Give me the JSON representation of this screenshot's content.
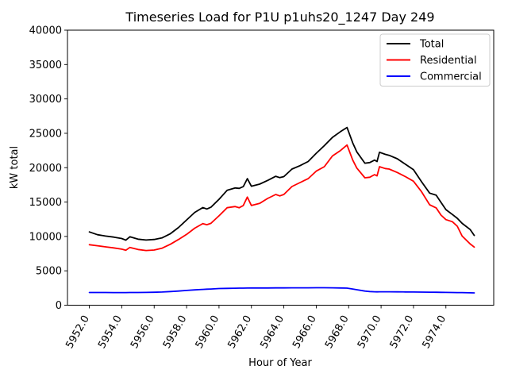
{
  "chart_data": {
    "type": "line",
    "title": "Timeseries Load for P1U p1uhs20_1247  Day 249",
    "xlabel": "Hour of Year",
    "ylabel": "kW total",
    "xlim": [
      5950.65,
      5976.95
    ],
    "ylim": [
      0,
      40000
    ],
    "xticks": [
      5952,
      5954,
      5956,
      5958,
      5960,
      5962,
      5964,
      5966,
      5968,
      5970,
      5972,
      5974
    ],
    "xtick_labels": [
      "5952.0",
      "5954.0",
      "5956.0",
      "5958.0",
      "5960.0",
      "5962.0",
      "5964.0",
      "5966.0",
      "5968.0",
      "5970.0",
      "5972.0",
      "5974.0"
    ],
    "xtick_rotation_deg": 60,
    "yticks": [
      0,
      5000,
      10000,
      15000,
      20000,
      25000,
      30000,
      35000,
      40000
    ],
    "ytick_labels": [
      "0",
      "5000",
      "10000",
      "15000",
      "20000",
      "25000",
      "30000",
      "35000",
      "40000"
    ],
    "grid": false,
    "background": "#ffffff",
    "axes_edge_color": "#000000",
    "legend_position": "upper right",
    "legend_edge_color": "#cccccc",
    "x": [
      5952.0,
      5952.5,
      5953.0,
      5953.5,
      5954.0,
      5954.25,
      5954.5,
      5955.0,
      5955.5,
      5956.0,
      5956.5,
      5957.0,
      5957.5,
      5958.0,
      5958.5,
      5959.0,
      5959.25,
      5959.5,
      5960.0,
      5960.5,
      5961.0,
      5961.25,
      5961.5,
      5961.75,
      5962.0,
      5962.5,
      5963.0,
      5963.5,
      5963.75,
      5964.0,
      5964.5,
      5965.0,
      5965.5,
      5966.0,
      5966.5,
      5967.0,
      5967.5,
      5967.9,
      5968.25,
      5968.5,
      5969.0,
      5969.3,
      5969.6,
      5969.75,
      5969.9,
      5970.25,
      5970.5,
      5971.0,
      5971.5,
      5972.0,
      5972.5,
      5973.0,
      5973.4,
      5973.7,
      5974.0,
      5974.4,
      5974.7,
      5975.0,
      5975.5,
      5975.75
    ],
    "series": [
      {
        "name": "Total",
        "color": "#000000",
        "values": [
          10650,
          10250,
          10060,
          9900,
          9700,
          9450,
          9950,
          9600,
          9480,
          9560,
          9800,
          10400,
          11300,
          12400,
          13500,
          14200,
          13990,
          14250,
          15400,
          16700,
          17050,
          16990,
          17250,
          18400,
          17300,
          17600,
          18150,
          18750,
          18550,
          18700,
          19800,
          20300,
          20900,
          22100,
          23200,
          24400,
          25250,
          25850,
          23600,
          22300,
          20650,
          20750,
          21100,
          20900,
          22250,
          21950,
          21800,
          21300,
          20500,
          19700,
          17950,
          16300,
          16000,
          14950,
          13900,
          13200,
          12640,
          11900,
          11000,
          10150
        ]
      },
      {
        "name": "Residential",
        "color": "#ff0000",
        "values": [
          8800,
          8650,
          8480,
          8330,
          8150,
          7985,
          8400,
          8100,
          7950,
          8020,
          8300,
          8870,
          9560,
          10300,
          11200,
          11870,
          11700,
          11900,
          13000,
          14180,
          14350,
          14180,
          14500,
          15720,
          14500,
          14800,
          15530,
          16100,
          15900,
          16100,
          17260,
          17840,
          18400,
          19500,
          20150,
          21700,
          22500,
          23300,
          21100,
          19950,
          18530,
          18610,
          18990,
          18800,
          20145,
          19875,
          19800,
          19300,
          18700,
          18030,
          16500,
          14600,
          14150,
          13100,
          12450,
          12150,
          11490,
          10050,
          8900,
          8450
        ]
      },
      {
        "name": "Commercial",
        "color": "#0000ff",
        "values": [
          1850,
          1850,
          1850,
          1840,
          1840,
          1840,
          1850,
          1850,
          1860,
          1880,
          1920,
          1980,
          2060,
          2150,
          2230,
          2300,
          2330,
          2360,
          2420,
          2450,
          2470,
          2480,
          2480,
          2490,
          2500,
          2510,
          2510,
          2520,
          2520,
          2520,
          2530,
          2530,
          2530,
          2540,
          2540,
          2530,
          2500,
          2480,
          2350,
          2250,
          2050,
          1980,
          1950,
          1940,
          1950,
          1950,
          1950,
          1940,
          1930,
          1920,
          1900,
          1890,
          1880,
          1870,
          1860,
          1850,
          1840,
          1830,
          1800,
          1790
        ]
      }
    ]
  }
}
